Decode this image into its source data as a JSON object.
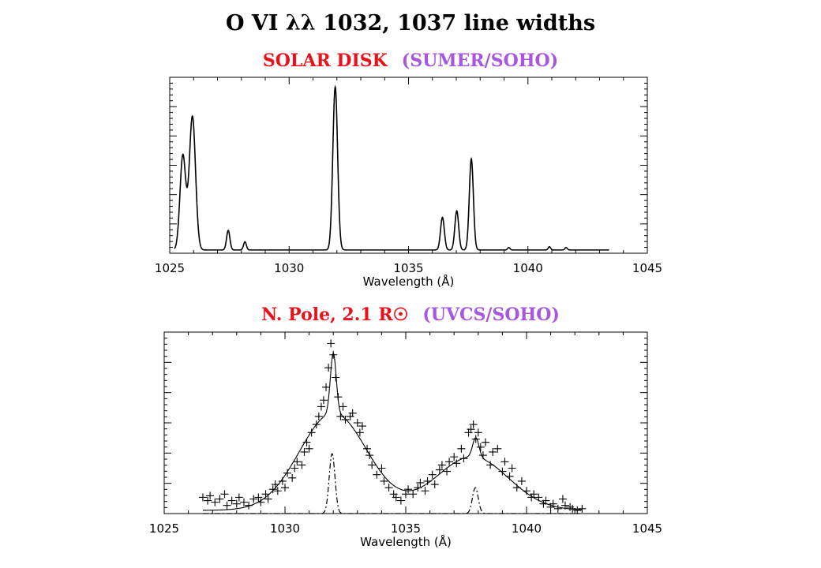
{
  "title": {
    "text": "O VI λλ 1032, 1037 line widths"
  },
  "panels": [
    {
      "subtitle_left": "SOLAR DISK",
      "subtitle_right": "(SUMER/SOHO)",
      "subtitle_left_color": "#e8121a",
      "subtitle_right_color": "#a855e0"
    },
    {
      "subtitle_left": "N. Pole, 2.1 R☉",
      "subtitle_right": "(UVCS/SOHO)",
      "subtitle_left_color": "#e8121a",
      "subtitle_right_color": "#a855e0"
    }
  ],
  "chart_data": [
    {
      "type": "line",
      "title": "SOLAR DISK (SUMER/SOHO)",
      "xlabel": "Wavelength (Å)",
      "ylabel": "",
      "xlim": [
        1025,
        1045
      ],
      "ylim": [
        0,
        1.08
      ],
      "xticks": [
        1025,
        1030,
        1035,
        1040,
        1045
      ],
      "yticks_shown": false,
      "baseline": 0.02,
      "x_range": [
        1025.2,
        1043.4
      ],
      "spectrum_peaks": [
        {
          "x": 1025.55,
          "amp": 0.58,
          "sigma": 0.12
        },
        {
          "x": 1025.95,
          "amp": 0.82,
          "sigma": 0.13
        },
        {
          "x": 1027.45,
          "amp": 0.12,
          "sigma": 0.07
        },
        {
          "x": 1028.15,
          "amp": 0.05,
          "sigma": 0.06
        },
        {
          "x": 1031.93,
          "amp": 1.0,
          "sigma": 0.1
        },
        {
          "x": 1036.42,
          "amp": 0.2,
          "sigma": 0.08
        },
        {
          "x": 1037.02,
          "amp": 0.24,
          "sigma": 0.08
        },
        {
          "x": 1037.63,
          "amp": 0.56,
          "sigma": 0.085
        },
        {
          "x": 1039.2,
          "amp": 0.015,
          "sigma": 0.05
        },
        {
          "x": 1040.9,
          "amp": 0.02,
          "sigma": 0.05
        },
        {
          "x": 1041.6,
          "amp": 0.015,
          "sigma": 0.05
        }
      ]
    },
    {
      "type": "scatter",
      "title": "N. Pole, 2.1 R☉ (UVCS/SOHO)",
      "xlabel": "Wavelength (Å)",
      "ylabel": "",
      "xlim": [
        1025,
        1045
      ],
      "ylim": [
        0,
        1.12
      ],
      "xticks": [
        1025,
        1030,
        1035,
        1040,
        1045
      ],
      "yticks_shown": false,
      "fit_total": {
        "x_range": [
          1026.6,
          1042.3
        ],
        "baseline": 0.02,
        "components": [
          {
            "x": 1032.0,
            "amp": 0.6,
            "sigma": 1.4
          },
          {
            "x": 1032.0,
            "amp": 0.37,
            "sigma": 0.12
          },
          {
            "x": 1037.75,
            "amp": 0.33,
            "sigma": 1.5
          },
          {
            "x": 1037.9,
            "amp": 0.12,
            "sigma": 0.13
          }
        ]
      },
      "fit_narrow": {
        "x_range": [
          1026.6,
          1042.3
        ],
        "components": [
          {
            "x": 1031.95,
            "amp": 0.37,
            "sigma": 0.12
          },
          {
            "x": 1037.88,
            "amp": 0.16,
            "sigma": 0.12
          }
        ]
      },
      "points": [
        [
          1026.6,
          0.1
        ],
        [
          1026.8,
          0.08
        ],
        [
          1026.9,
          0.11
        ],
        [
          1027.1,
          0.07
        ],
        [
          1027.3,
          0.09
        ],
        [
          1027.5,
          0.12
        ],
        [
          1027.6,
          0.05
        ],
        [
          1027.8,
          0.08
        ],
        [
          1028.0,
          0.06
        ],
        [
          1028.1,
          0.1
        ],
        [
          1028.3,
          0.07
        ],
        [
          1028.5,
          0.05
        ],
        [
          1028.7,
          0.09
        ],
        [
          1028.9,
          0.1
        ],
        [
          1029.0,
          0.07
        ],
        [
          1029.2,
          0.12
        ],
        [
          1029.3,
          0.09
        ],
        [
          1029.5,
          0.15
        ],
        [
          1029.6,
          0.18
        ],
        [
          1029.7,
          0.14
        ],
        [
          1029.9,
          0.2
        ],
        [
          1030.0,
          0.16
        ],
        [
          1030.1,
          0.25
        ],
        [
          1030.3,
          0.22
        ],
        [
          1030.4,
          0.28
        ],
        [
          1030.5,
          0.32
        ],
        [
          1030.7,
          0.3
        ],
        [
          1030.8,
          0.38
        ],
        [
          1030.9,
          0.44
        ],
        [
          1031.0,
          0.4
        ],
        [
          1031.1,
          0.5
        ],
        [
          1031.3,
          0.55
        ],
        [
          1031.4,
          0.6
        ],
        [
          1031.5,
          0.66
        ],
        [
          1031.6,
          0.7
        ],
        [
          1031.7,
          0.78
        ],
        [
          1031.8,
          0.9
        ],
        [
          1031.9,
          1.05
        ],
        [
          1032.0,
          0.98
        ],
        [
          1032.1,
          0.84
        ],
        [
          1032.2,
          0.72
        ],
        [
          1032.3,
          0.6
        ],
        [
          1032.4,
          0.66
        ],
        [
          1032.5,
          0.58
        ],
        [
          1032.7,
          0.6
        ],
        [
          1032.8,
          0.62
        ],
        [
          1033.0,
          0.56
        ],
        [
          1033.1,
          0.5
        ],
        [
          1033.2,
          0.54
        ],
        [
          1033.4,
          0.4
        ],
        [
          1033.5,
          0.36
        ],
        [
          1033.6,
          0.3
        ],
        [
          1033.8,
          0.24
        ],
        [
          1034.0,
          0.28
        ],
        [
          1034.1,
          0.2
        ],
        [
          1034.3,
          0.16
        ],
        [
          1034.5,
          0.12
        ],
        [
          1034.6,
          0.1
        ],
        [
          1034.8,
          0.08
        ],
        [
          1035.0,
          0.12
        ],
        [
          1035.1,
          0.15
        ],
        [
          1035.3,
          0.12
        ],
        [
          1035.5,
          0.16
        ],
        [
          1035.6,
          0.19
        ],
        [
          1035.8,
          0.14
        ],
        [
          1035.9,
          0.2
        ],
        [
          1036.1,
          0.24
        ],
        [
          1036.2,
          0.18
        ],
        [
          1036.4,
          0.27
        ],
        [
          1036.5,
          0.3
        ],
        [
          1036.7,
          0.26
        ],
        [
          1036.8,
          0.32
        ],
        [
          1037.0,
          0.35
        ],
        [
          1037.1,
          0.31
        ],
        [
          1037.3,
          0.4
        ],
        [
          1037.4,
          0.34
        ],
        [
          1037.6,
          0.5
        ],
        [
          1037.7,
          0.52
        ],
        [
          1037.8,
          0.55
        ],
        [
          1037.9,
          0.46
        ],
        [
          1038.0,
          0.5
        ],
        [
          1038.1,
          0.41
        ],
        [
          1038.2,
          0.36
        ],
        [
          1038.3,
          0.44
        ],
        [
          1038.5,
          0.3
        ],
        [
          1038.6,
          0.38
        ],
        [
          1038.8,
          0.4
        ],
        [
          1039.0,
          0.26
        ],
        [
          1039.1,
          0.32
        ],
        [
          1039.3,
          0.23
        ],
        [
          1039.4,
          0.28
        ],
        [
          1039.6,
          0.16
        ],
        [
          1039.8,
          0.2
        ],
        [
          1040.0,
          0.14
        ],
        [
          1040.2,
          0.1
        ],
        [
          1040.3,
          0.12
        ],
        [
          1040.5,
          0.1
        ],
        [
          1040.7,
          0.06
        ],
        [
          1040.8,
          0.08
        ],
        [
          1041.0,
          0.04
        ],
        [
          1041.1,
          0.06
        ],
        [
          1041.3,
          0.03
        ],
        [
          1041.5,
          0.09
        ],
        [
          1041.6,
          0.05
        ],
        [
          1041.8,
          0.04
        ],
        [
          1041.9,
          0.03
        ],
        [
          1042.1,
          0.02
        ],
        [
          1042.3,
          0.03
        ]
      ]
    }
  ]
}
